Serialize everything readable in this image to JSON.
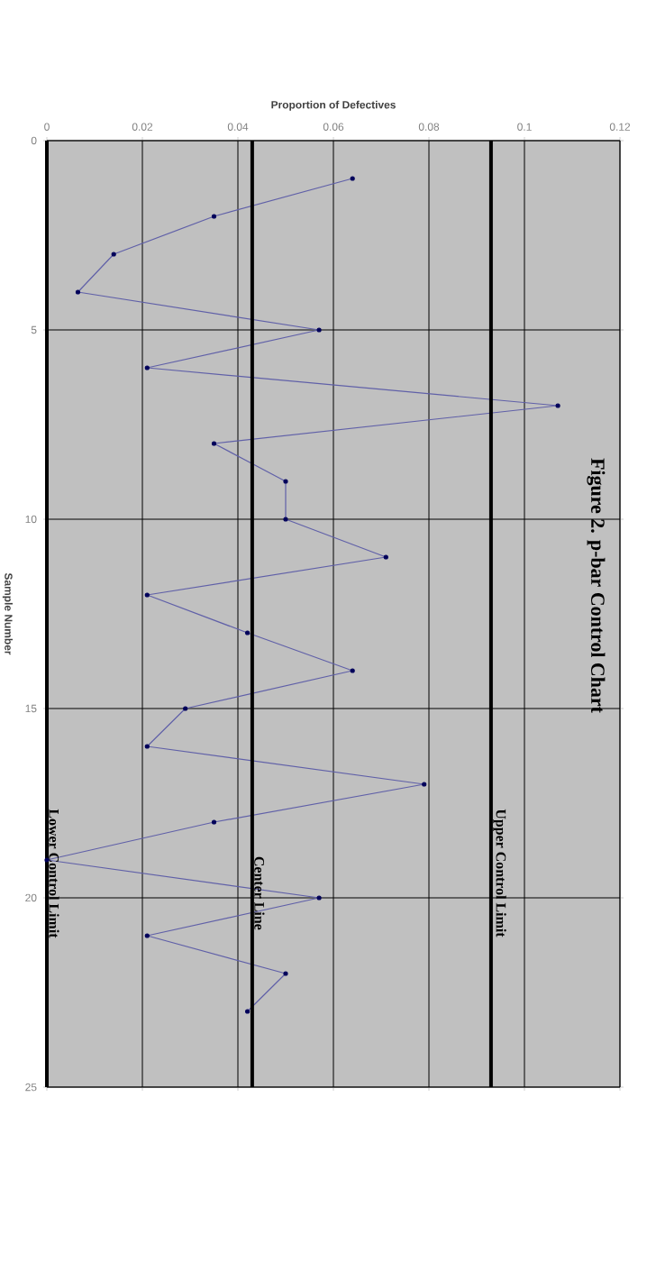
{
  "chart_data": {
    "type": "line",
    "title": "Figure 2.    p-bar Control Chart",
    "xlabel": "Proportion of Defectives",
    "ylabel": "Sample Number",
    "x": [
      0.064,
      0.035,
      0.014,
      0.0065,
      0.057,
      0.021,
      0.107,
      0.035,
      0.05,
      0.05,
      0.071,
      0.021,
      0.042,
      0.064,
      0.029,
      0.021,
      0.079,
      0.035,
      0,
      0.057,
      0.021,
      0.05,
      0.042
    ],
    "series": [
      {
        "color": "#6060a8",
        "values": [
          1,
          2,
          3,
          4,
          5,
          6,
          7,
          8,
          9,
          10,
          11,
          12,
          13,
          14,
          15,
          16,
          17,
          18,
          19,
          20,
          21,
          22,
          23
        ]
      }
    ],
    "xlim": [
      0,
      0.12
    ],
    "xticks": [
      0,
      0.02,
      0.04,
      0.06,
      0.08,
      0.1,
      0.12
    ],
    "ylim": [
      25,
      0
    ],
    "yticks": [
      0,
      5,
      10,
      15,
      20,
      25
    ],
    "ref_lines": [
      {
        "axis": "x",
        "value": 0.093,
        "label": "Upper Control Limit",
        "color": "#000000"
      },
      {
        "axis": "x",
        "value": 0.043,
        "label": "Center Line",
        "color": "#000000"
      },
      {
        "axis": "x",
        "value": 0,
        "label": "Lower Control Limit",
        "color": "#000000"
      }
    ],
    "grid": true,
    "marker": "circle",
    "line_style": "solid"
  }
}
